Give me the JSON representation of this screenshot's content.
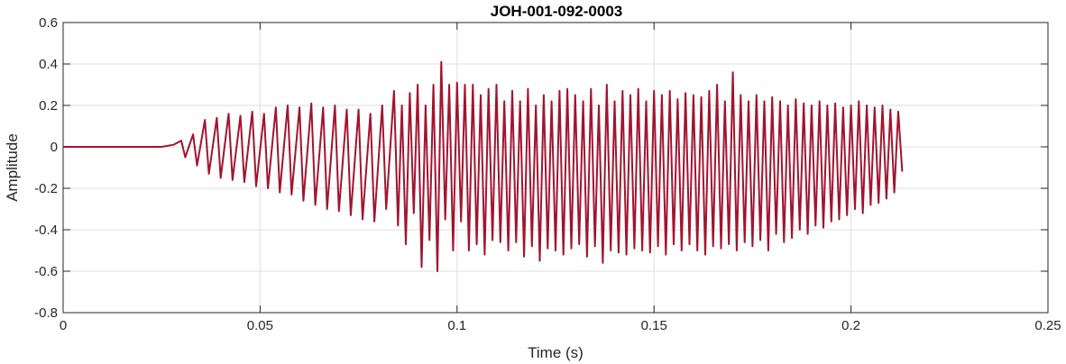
{
  "chart_data": {
    "type": "line",
    "title": "JOH-001-092-0003",
    "xlabel": "Time (s)",
    "ylabel": "Amplitude",
    "xlim": [
      0,
      0.25
    ],
    "ylim": [
      -0.8,
      0.6
    ],
    "xticks": [
      0,
      0.05,
      0.1,
      0.15,
      0.2,
      0.25
    ],
    "xtick_labels": [
      "0",
      "0.05",
      "0.1",
      "0.15",
      "0.2",
      "0.25"
    ],
    "yticks": [
      -0.8,
      -0.6,
      -0.4,
      -0.2,
      0,
      0.2,
      0.4,
      0.6
    ],
    "ytick_labels": [
      "-0.8",
      "-0.6",
      "-0.4",
      "-0.2",
      "0",
      "0.2",
      "0.4",
      "0.6"
    ],
    "grid": true,
    "line_color": "#a2142f",
    "series": [
      {
        "x": [
          0,
          0.025,
          0.028,
          0.03,
          0.031,
          0.033,
          0.034,
          0.036,
          0.037,
          0.039,
          0.04,
          0.042,
          0.043,
          0.045,
          0.046,
          0.048,
          0.049,
          0.051,
          0.052,
          0.054,
          0.055,
          0.057,
          0.058,
          0.06,
          0.061,
          0.063,
          0.064,
          0.066,
          0.067,
          0.069,
          0.07,
          0.072,
          0.073,
          0.075,
          0.076,
          0.078,
          0.079,
          0.081,
          0.082,
          0.084,
          0.085,
          0.086,
          0.087,
          0.088,
          0.089,
          0.09,
          0.091,
          0.092,
          0.093,
          0.094,
          0.095,
          0.096,
          0.097,
          0.098,
          0.099,
          0.1,
          0.101,
          0.102,
          0.103,
          0.104,
          0.105,
          0.106,
          0.107,
          0.108,
          0.109,
          0.11,
          0.111,
          0.112,
          0.113,
          0.114,
          0.115,
          0.116,
          0.117,
          0.118,
          0.119,
          0.12,
          0.121,
          0.122,
          0.123,
          0.124,
          0.125,
          0.126,
          0.127,
          0.128,
          0.129,
          0.13,
          0.131,
          0.132,
          0.133,
          0.134,
          0.135,
          0.136,
          0.137,
          0.138,
          0.139,
          0.14,
          0.141,
          0.142,
          0.143,
          0.144,
          0.145,
          0.146,
          0.147,
          0.148,
          0.149,
          0.15,
          0.151,
          0.152,
          0.153,
          0.154,
          0.155,
          0.156,
          0.157,
          0.158,
          0.159,
          0.16,
          0.161,
          0.162,
          0.163,
          0.164,
          0.165,
          0.166,
          0.167,
          0.168,
          0.169,
          0.17,
          0.171,
          0.172,
          0.173,
          0.174,
          0.175,
          0.176,
          0.177,
          0.178,
          0.179,
          0.18,
          0.181,
          0.182,
          0.183,
          0.184,
          0.185,
          0.186,
          0.187,
          0.188,
          0.189,
          0.19,
          0.191,
          0.192,
          0.193,
          0.194,
          0.195,
          0.196,
          0.197,
          0.198,
          0.199,
          0.2,
          0.201,
          0.202,
          0.203,
          0.204,
          0.205,
          0.206,
          0.207,
          0.208,
          0.209,
          0.21,
          0.211,
          0.212,
          0.213
        ],
        "values": [
          0,
          0,
          0.01,
          0.03,
          -0.05,
          0.06,
          -0.09,
          0.13,
          -0.13,
          0.14,
          -0.15,
          0.16,
          -0.16,
          0.15,
          -0.17,
          0.17,
          -0.19,
          0.16,
          -0.2,
          0.19,
          -0.22,
          0.2,
          -0.23,
          0.19,
          -0.26,
          0.21,
          -0.28,
          0.19,
          -0.3,
          0.2,
          -0.31,
          0.18,
          -0.33,
          0.18,
          -0.35,
          0.16,
          -0.36,
          0.2,
          -0.3,
          0.27,
          -0.38,
          0.2,
          -0.47,
          0.26,
          -0.32,
          0.3,
          -0.58,
          0.2,
          -0.45,
          0.3,
          -0.6,
          0.41,
          -0.35,
          0.3,
          -0.5,
          0.31,
          -0.36,
          0.3,
          -0.5,
          0.3,
          -0.47,
          0.25,
          -0.52,
          0.28,
          -0.45,
          0.3,
          -0.46,
          0.22,
          -0.5,
          0.27,
          -0.46,
          0.22,
          -0.53,
          0.28,
          -0.48,
          0.2,
          -0.55,
          0.25,
          -0.49,
          0.22,
          -0.5,
          0.27,
          -0.52,
          0.28,
          -0.49,
          0.25,
          -0.47,
          0.22,
          -0.53,
          0.28,
          -0.48,
          0.2,
          -0.56,
          0.3,
          -0.5,
          0.22,
          -0.51,
          0.27,
          -0.52,
          0.25,
          -0.49,
          0.28,
          -0.5,
          0.22,
          -0.51,
          0.27,
          -0.48,
          0.25,
          -0.52,
          0.27,
          -0.47,
          0.23,
          -0.5,
          0.26,
          -0.47,
          0.25,
          -0.5,
          0.24,
          -0.52,
          0.27,
          -0.48,
          0.3,
          -0.49,
          0.22,
          -0.47,
          0.36,
          -0.5,
          0.25,
          -0.46,
          0.22,
          -0.48,
          0.25,
          -0.45,
          0.22,
          -0.5,
          0.24,
          -0.42,
          0.22,
          -0.46,
          0.2,
          -0.44,
          0.23,
          -0.4,
          0.21,
          -0.42,
          0.2,
          -0.38,
          0.22,
          -0.39,
          0.2,
          -0.36,
          0.21,
          -0.35,
          0.19,
          -0.33,
          0.2,
          -0.3,
          0.22,
          -0.32,
          0.2,
          -0.28,
          0.19,
          -0.27,
          0.2,
          -0.25,
          0.18,
          -0.22,
          0.17,
          -0.12
        ]
      }
    ]
  }
}
